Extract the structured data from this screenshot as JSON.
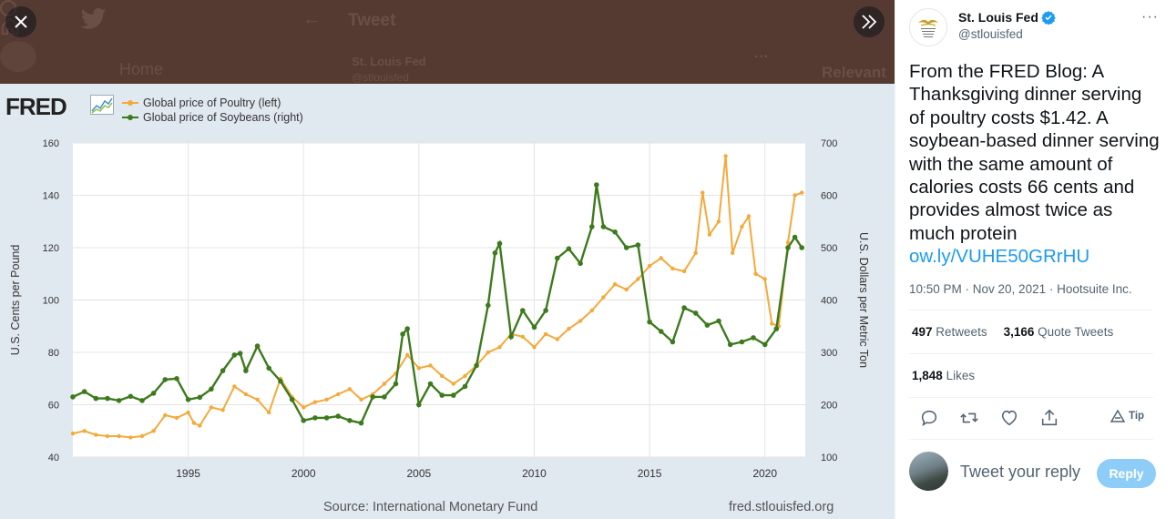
{
  "background_ui": {
    "header_title": "Tweet",
    "nav_home": "Home",
    "author_name": "St. Louis Fed",
    "author_handle": "@stlouisfed",
    "relevant_label": "Relevant"
  },
  "chart": {
    "logo_text": "FRED",
    "source": "Source: International Monetary Fund",
    "site": "fred.stlouisfed.org"
  },
  "chart_data": {
    "type": "line",
    "title": "",
    "xlabel": "",
    "ylabel_left": "U.S. Cents per Pound",
    "ylabel_right": "U.S. Dollars per Metric Ton",
    "xlim": [
      1990,
      2021.75
    ],
    "ylim_left": [
      40,
      160
    ],
    "ylim_right": [
      100,
      700
    ],
    "x_ticks": [
      1995,
      2000,
      2005,
      2010,
      2015,
      2020
    ],
    "y_ticks_left": [
      40,
      60,
      80,
      100,
      120,
      140,
      160
    ],
    "y_ticks_right": [
      100,
      200,
      300,
      400,
      500,
      600,
      700
    ],
    "legend_position": "top-left",
    "grid": true,
    "series": [
      {
        "name": "Global price of Poultry (left)",
        "axis": "left",
        "color": "#f4a93b",
        "points": [
          [
            1990,
            49
          ],
          [
            1990.5,
            50
          ],
          [
            1991,
            48.5
          ],
          [
            1991.5,
            48
          ],
          [
            1992,
            48
          ],
          [
            1992.5,
            47.5
          ],
          [
            1993,
            48
          ],
          [
            1993.5,
            50
          ],
          [
            1994,
            56
          ],
          [
            1994.5,
            55
          ],
          [
            1995,
            57
          ],
          [
            1995.25,
            53
          ],
          [
            1995.5,
            52
          ],
          [
            1996,
            59
          ],
          [
            1996.5,
            58
          ],
          [
            1997,
            67
          ],
          [
            1997.5,
            64
          ],
          [
            1998,
            62
          ],
          [
            1998.5,
            57
          ],
          [
            1999,
            70
          ],
          [
            1999.5,
            63
          ],
          [
            2000,
            59
          ],
          [
            2000.5,
            61
          ],
          [
            2001,
            62
          ],
          [
            2001.5,
            64
          ],
          [
            2002,
            66
          ],
          [
            2002.5,
            62
          ],
          [
            2003,
            64
          ],
          [
            2003.5,
            68
          ],
          [
            2004,
            72
          ],
          [
            2004.5,
            79
          ],
          [
            2005,
            74
          ],
          [
            2005.5,
            75
          ],
          [
            2006,
            71
          ],
          [
            2006.5,
            68
          ],
          [
            2007,
            71
          ],
          [
            2007.5,
            75
          ],
          [
            2008,
            80
          ],
          [
            2008.5,
            82
          ],
          [
            2009,
            87
          ],
          [
            2009.5,
            86
          ],
          [
            2010,
            82
          ],
          [
            2010.5,
            87
          ],
          [
            2011,
            85
          ],
          [
            2011.5,
            89
          ],
          [
            2012,
            92
          ],
          [
            2012.5,
            96
          ],
          [
            2013,
            101
          ],
          [
            2013.5,
            106
          ],
          [
            2014,
            104
          ],
          [
            2014.5,
            108
          ],
          [
            2015,
            113
          ],
          [
            2015.5,
            116
          ],
          [
            2016,
            112
          ],
          [
            2016.5,
            111
          ],
          [
            2017,
            118
          ],
          [
            2017.3,
            141
          ],
          [
            2017.6,
            125
          ],
          [
            2018,
            130
          ],
          [
            2018.3,
            155
          ],
          [
            2018.6,
            118
          ],
          [
            2019,
            128
          ],
          [
            2019.3,
            132
          ],
          [
            2019.6,
            110
          ],
          [
            2020,
            108
          ],
          [
            2020.3,
            91
          ],
          [
            2020.6,
            90
          ],
          [
            2021,
            122
          ],
          [
            2021.3,
            140
          ],
          [
            2021.6,
            141
          ]
        ]
      },
      {
        "name": "Global price of Soybeans (right)",
        "axis": "right",
        "color": "#3d7a1d",
        "points": [
          [
            1990,
            215
          ],
          [
            1990.5,
            225
          ],
          [
            1991,
            212
          ],
          [
            1991.5,
            212
          ],
          [
            1992,
            208
          ],
          [
            1992.5,
            216
          ],
          [
            1993,
            208
          ],
          [
            1993.5,
            222
          ],
          [
            1994,
            248
          ],
          [
            1994.5,
            250
          ],
          [
            1995,
            210
          ],
          [
            1995.5,
            214
          ],
          [
            1996,
            230
          ],
          [
            1996.5,
            265
          ],
          [
            1997,
            295
          ],
          [
            1997.25,
            298
          ],
          [
            1997.5,
            265
          ],
          [
            1998,
            312
          ],
          [
            1998.5,
            270
          ],
          [
            1999,
            245
          ],
          [
            1999.5,
            210
          ],
          [
            2000,
            170
          ],
          [
            2000.5,
            175
          ],
          [
            2001,
            175
          ],
          [
            2001.5,
            178
          ],
          [
            2002,
            170
          ],
          [
            2002.5,
            165
          ],
          [
            2003,
            215
          ],
          [
            2003.5,
            215
          ],
          [
            2004,
            240
          ],
          [
            2004.3,
            335
          ],
          [
            2004.5,
            345
          ],
          [
            2005,
            200
          ],
          [
            2005.5,
            240
          ],
          [
            2006,
            218
          ],
          [
            2006.5,
            218
          ],
          [
            2007,
            235
          ],
          [
            2007.5,
            275
          ],
          [
            2008,
            390
          ],
          [
            2008.3,
            490
          ],
          [
            2008.5,
            508
          ],
          [
            2009,
            330
          ],
          [
            2009.5,
            380
          ],
          [
            2010,
            348
          ],
          [
            2010.5,
            380
          ],
          [
            2011,
            480
          ],
          [
            2011.5,
            498
          ],
          [
            2012,
            470
          ],
          [
            2012.5,
            540
          ],
          [
            2012.7,
            620
          ],
          [
            2013,
            540
          ],
          [
            2013.5,
            530
          ],
          [
            2014,
            500
          ],
          [
            2014.5,
            505
          ],
          [
            2015,
            358
          ],
          [
            2015.5,
            340
          ],
          [
            2016,
            320
          ],
          [
            2016.5,
            385
          ],
          [
            2017,
            375
          ],
          [
            2017.5,
            352
          ],
          [
            2018,
            360
          ],
          [
            2018.5,
            315
          ],
          [
            2019,
            320
          ],
          [
            2019.5,
            328
          ],
          [
            2020,
            315
          ],
          [
            2020.5,
            345
          ],
          [
            2021,
            500
          ],
          [
            2021.3,
            520
          ],
          [
            2021.6,
            500
          ]
        ]
      }
    ]
  },
  "tweet": {
    "author_name": "St. Louis Fed",
    "author_handle": "@stlouisfed",
    "more_label": "···",
    "text": "From the FRED Blog: A Thanksgiving dinner serving of poultry costs $1.42. A soybean-based dinner serving with the same amount of calories costs 66 cents and provides almost twice as much protein ",
    "link": "ow.ly/VUHE50GRrHU",
    "meta": "10:50 PM · Nov 20, 2021 · Hootsuite Inc.",
    "retweets_count": "497",
    "retweets_label": "Retweets",
    "quote_count": "3,166",
    "quote_label": "Quote Tweets",
    "likes_count": "1,848",
    "likes_label": "Likes",
    "tip_label": "Tip",
    "reply_placeholder": "Tweet your reply",
    "reply_button": "Reply",
    "link_color": "#1d9bf0",
    "reply_button_color": "#8ecdf8"
  },
  "icons": {
    "close": "close-icon",
    "expand": "double-chevron-right-icon",
    "verified": "verified-badge-icon",
    "reply": "reply-icon",
    "retweet": "retweet-icon",
    "like": "heart-icon",
    "share": "share-icon",
    "tip": "tip-icon"
  }
}
